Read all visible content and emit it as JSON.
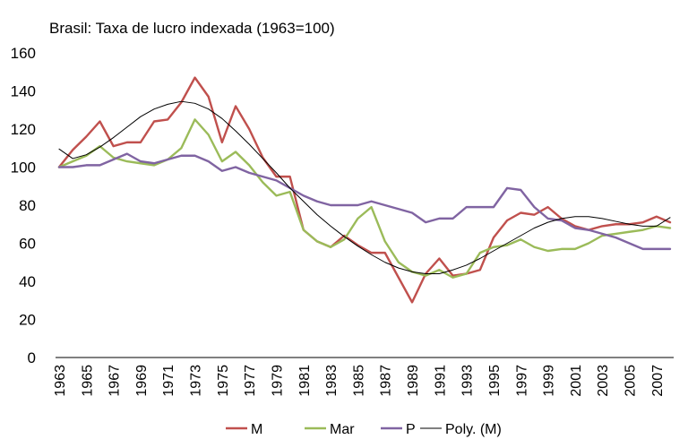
{
  "chart_data": {
    "type": "line",
    "title": "Brasil:  Taxa de lucro indexada (1963=100)",
    "x": [
      1963,
      1964,
      1965,
      1966,
      1967,
      1968,
      1969,
      1970,
      1971,
      1972,
      1973,
      1974,
      1975,
      1976,
      1977,
      1978,
      1979,
      1980,
      1981,
      1982,
      1983,
      1984,
      1985,
      1986,
      1987,
      1988,
      1989,
      1990,
      1991,
      1992,
      1993,
      1994,
      1995,
      1996,
      1997,
      1998,
      1999,
      2000,
      2001,
      2002,
      2003,
      2004,
      2005,
      2006,
      2007,
      2008
    ],
    "x_tick_labels": [
      "1963",
      "1965",
      "1967",
      "1969",
      "1971",
      "1973",
      "1975",
      "1977",
      "1979",
      "1981",
      "1983",
      "1985",
      "1987",
      "1989",
      "1991",
      "1993",
      "1995",
      "1997",
      "1999",
      "2001",
      "2003",
      "2005",
      "2007"
    ],
    "ylim": [
      0,
      160
    ],
    "y_ticks": [
      0,
      20,
      40,
      60,
      80,
      100,
      120,
      140,
      160
    ],
    "grid": false,
    "legend_position": "bottom",
    "series": [
      {
        "name": "M",
        "color": "#c0504d",
        "style": "solid",
        "values": [
          100,
          109,
          116,
          124,
          111,
          113,
          113,
          124,
          125,
          134,
          147,
          137,
          113,
          132,
          120,
          105,
          95,
          95,
          67,
          61,
          58,
          64,
          59,
          55,
          55,
          42,
          29,
          44,
          52,
          43,
          44,
          46,
          63,
          72,
          76,
          75,
          79,
          73,
          69,
          67,
          69,
          70,
          70,
          71,
          74,
          71
        ]
      },
      {
        "name": "Mar",
        "color": "#9bbb59",
        "style": "solid",
        "values": [
          100,
          103,
          106,
          111,
          105,
          103,
          102,
          101,
          104,
          110,
          125,
          117,
          103,
          108,
          101,
          92,
          85,
          87,
          67,
          61,
          58,
          62,
          73,
          79,
          61,
          50,
          45,
          43,
          46,
          42,
          44,
          55,
          58,
          59,
          62,
          58,
          56,
          57,
          57,
          60,
          64,
          65,
          66,
          67,
          69,
          68
        ]
      },
      {
        "name": "P",
        "color": "#8064a2",
        "style": "solid",
        "values": [
          100,
          100,
          101,
          101,
          104,
          107,
          103,
          102,
          104,
          106,
          106,
          103,
          98,
          100,
          97,
          95,
          93,
          89,
          85,
          82,
          80,
          80,
          80,
          82,
          80,
          78,
          76,
          71,
          73,
          73,
          79,
          79,
          79,
          89,
          88,
          79,
          73,
          72,
          68,
          67,
          65,
          63,
          60,
          57,
          57,
          57
        ]
      },
      {
        "name": "Poly. (M)",
        "color": "#000000",
        "style": "thin",
        "values": [
          109.5,
          104.5,
          106.5,
          110.5,
          115.5,
          121,
          126.5,
          130.5,
          133,
          134.5,
          133.5,
          130.5,
          125.5,
          119,
          112,
          104.5,
          97,
          89,
          82,
          75,
          69,
          63.5,
          58.5,
          54,
          50,
          47,
          45,
          44,
          44,
          46,
          48.5,
          52,
          56,
          60,
          64,
          68,
          71,
          73,
          74,
          74,
          73,
          71.5,
          70,
          69,
          69,
          73.5
        ]
      }
    ]
  }
}
